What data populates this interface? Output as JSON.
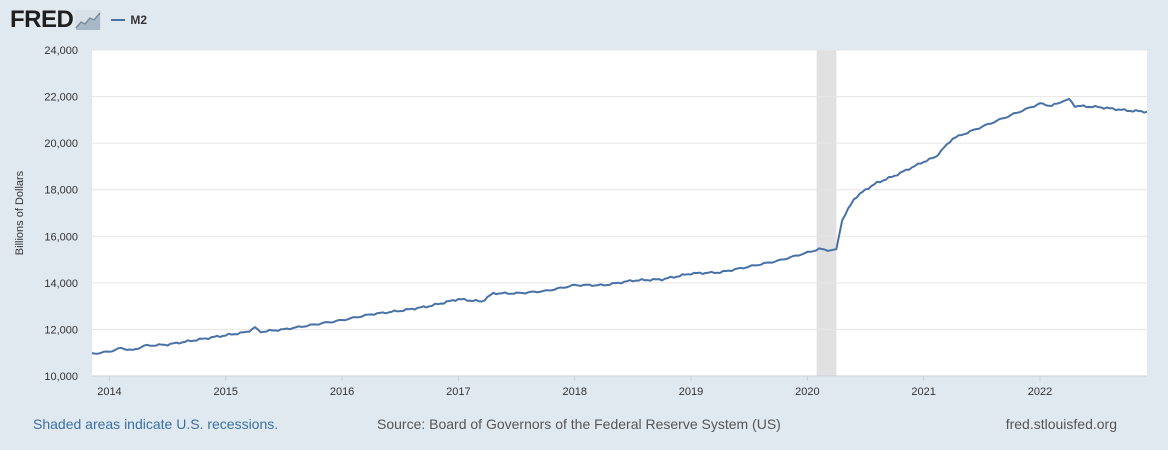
{
  "header": {
    "logo_text": "FRED",
    "logo_icon": "line-chart-icon"
  },
  "colors": {
    "series": "#4872a6",
    "recession": "#e1e1e1",
    "grid": "#e6e6e6",
    "background": "#e1e9f0",
    "plot_background": "#ffffff"
  },
  "footer": {
    "note": "Shaded areas indicate U.S. recessions.",
    "source": "Source: Board of Governors of the Federal Reserve System (US)",
    "site": "fred.stlouisfed.org"
  },
  "chart_data": {
    "type": "line",
    "title": "",
    "xlabel": "",
    "ylabel": "Billions of Dollars",
    "ylim": [
      10000,
      24000
    ],
    "xlim": [
      2013.85,
      2022.92
    ],
    "yticks": [
      10000,
      12000,
      14000,
      16000,
      18000,
      20000,
      22000,
      24000
    ],
    "ytick_labels": [
      "10,000",
      "12,000",
      "14,000",
      "16,000",
      "18,000",
      "20,000",
      "22,000",
      "24,000"
    ],
    "xticks": [
      2014,
      2015,
      2016,
      2017,
      2018,
      2019,
      2020,
      2021,
      2022
    ],
    "xtick_labels": [
      "2014",
      "2015",
      "2016",
      "2017",
      "2018",
      "2019",
      "2020",
      "2021",
      "2022"
    ],
    "grid": true,
    "legend_position": "top-left",
    "recessions": [
      [
        2020.08,
        2020.25
      ]
    ],
    "series": [
      {
        "name": "M2",
        "x": [
          2013.85,
          2014.0,
          2014.1,
          2014.2,
          2014.3,
          2014.5,
          2014.75,
          2015.0,
          2015.2,
          2015.25,
          2015.3,
          2015.5,
          2015.75,
          2016.0,
          2016.25,
          2016.5,
          2016.75,
          2017.0,
          2017.2,
          2017.3,
          2017.5,
          2017.75,
          2018.0,
          2018.25,
          2018.5,
          2018.75,
          2019.0,
          2019.25,
          2019.5,
          2019.75,
          2020.0,
          2020.1,
          2020.2,
          2020.25,
          2020.3,
          2020.4,
          2020.5,
          2020.6,
          2020.75,
          2021.0,
          2021.1,
          2021.25,
          2021.5,
          2021.75,
          2022.0,
          2022.1,
          2022.2,
          2022.25,
          2022.3,
          2022.5,
          2022.75,
          2022.92
        ],
        "y": [
          10950,
          11050,
          11200,
          11100,
          11300,
          11350,
          11550,
          11750,
          11900,
          12100,
          11900,
          12000,
          12200,
          12400,
          12650,
          12800,
          13000,
          13300,
          13200,
          13550,
          13550,
          13650,
          13900,
          13900,
          14100,
          14150,
          14400,
          14450,
          14700,
          14950,
          15300,
          15450,
          15400,
          15450,
          16700,
          17600,
          18000,
          18300,
          18600,
          19200,
          19400,
          20200,
          20700,
          21200,
          21700,
          21600,
          21800,
          21900,
          21600,
          21550,
          21400,
          21350
        ]
      }
    ]
  }
}
